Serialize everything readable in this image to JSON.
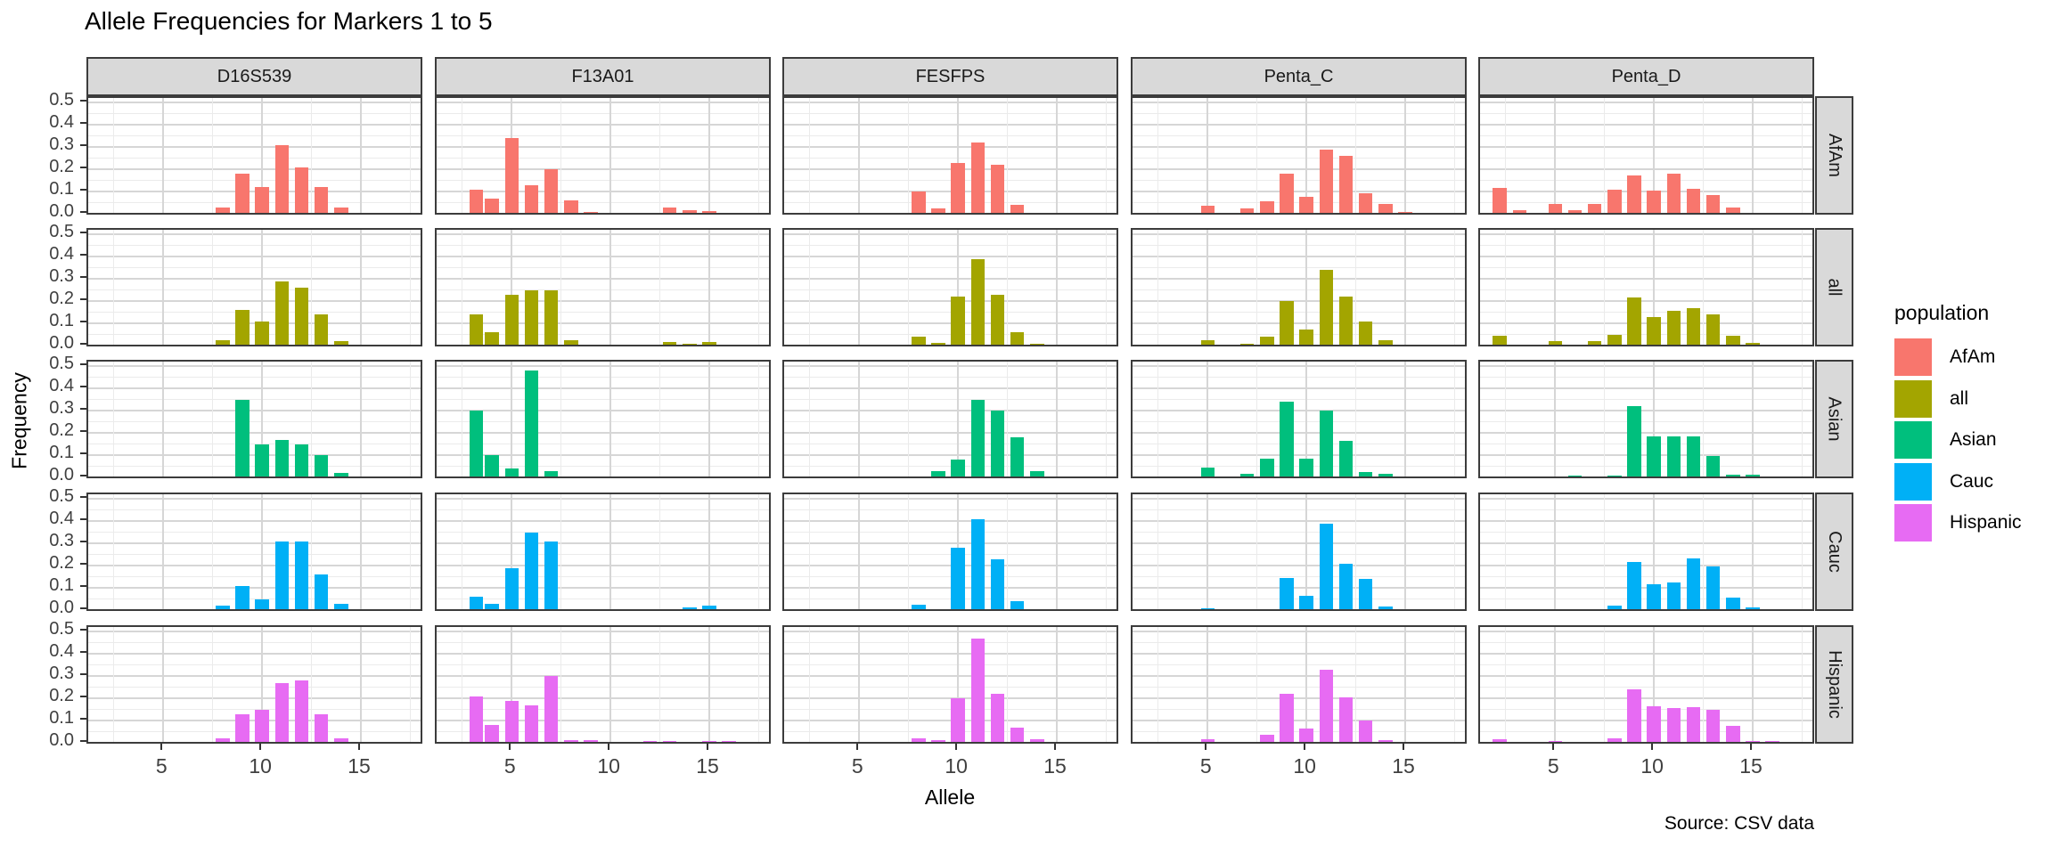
{
  "chart_data": {
    "type": "bar",
    "title": "Allele Frequencies for Markers 1 to 5",
    "xlabel": "Allele",
    "ylabel": "Frequency",
    "caption": "Source: CSV data",
    "legend": {
      "title": "population",
      "entries": [
        "AfAm",
        "all",
        "Asian",
        "Cauc",
        "Hispanic"
      ]
    },
    "facet_columns": [
      "D16S539",
      "F13A01",
      "FESFPS",
      "Penta_C",
      "Penta_D"
    ],
    "facet_rows": [
      "AfAm",
      "all",
      "Asian",
      "Cauc",
      "Hispanic"
    ],
    "colors": {
      "AfAm": "#F8766D",
      "all": "#A3A500",
      "Asian": "#00BF7D",
      "Cauc": "#00B0F6",
      "Hispanic": "#E76BF3"
    },
    "x_tick_labels": [
      "5",
      "10",
      "15"
    ],
    "x_tick_values": [
      5,
      10,
      15
    ],
    "x_minor_values": [
      2.5,
      7.5,
      12.5,
      17.5
    ],
    "y_tick_labels": [
      "0.0",
      "0.1",
      "0.2",
      "0.3",
      "0.4",
      "0.5"
    ],
    "y_tick_values": [
      0.0,
      0.1,
      0.2,
      0.3,
      0.4,
      0.5
    ],
    "y_minor_values": [
      0.05,
      0.15,
      0.25,
      0.35,
      0.45
    ],
    "x_domain": [
      1.2,
      18.2
    ],
    "y_domain": [
      -0.01,
      0.52
    ],
    "bar_width_units": 0.7,
    "grid": true,
    "legend_position": "right",
    "panels": [
      {
        "marker": "D16S539",
        "population": "AfAm",
        "bars": [
          [
            5,
            0.005
          ],
          [
            8,
            0.03
          ],
          [
            9,
            0.18
          ],
          [
            10,
            0.12
          ],
          [
            11,
            0.31
          ],
          [
            12,
            0.21
          ],
          [
            13,
            0.12
          ],
          [
            14,
            0.03
          ]
        ]
      },
      {
        "marker": "F13A01",
        "population": "AfAm",
        "bars": [
          [
            3.2,
            0.11
          ],
          [
            4,
            0.07
          ],
          [
            4.5,
            0.005
          ],
          [
            5,
            0.34
          ],
          [
            6,
            0.13
          ],
          [
            7,
            0.2
          ],
          [
            8,
            0.06
          ],
          [
            9,
            0.01
          ],
          [
            10,
            0.006
          ],
          [
            11,
            0.006
          ],
          [
            12,
            0.003
          ],
          [
            13,
            0.03
          ],
          [
            14,
            0.017
          ],
          [
            15,
            0.015
          ]
        ]
      },
      {
        "marker": "FESFPS",
        "population": "AfAm",
        "bars": [
          [
            6,
            0.004
          ],
          [
            7,
            0.004
          ],
          [
            8,
            0.1
          ],
          [
            9,
            0.025
          ],
          [
            10,
            0.23
          ],
          [
            11,
            0.32
          ],
          [
            12,
            0.22
          ],
          [
            13,
            0.04
          ]
        ]
      },
      {
        "marker": "Penta_C",
        "population": "AfAm",
        "bars": [
          [
            5,
            0.037
          ],
          [
            7,
            0.024
          ],
          [
            8,
            0.057
          ],
          [
            9,
            0.18
          ],
          [
            10,
            0.077
          ],
          [
            11,
            0.29
          ],
          [
            12,
            0.26
          ],
          [
            13,
            0.093
          ],
          [
            14,
            0.047
          ],
          [
            15,
            0.011
          ],
          [
            16,
            0.005
          ]
        ]
      },
      {
        "marker": "Penta_D",
        "population": "AfAm",
        "bars": [
          [
            2.2,
            0.116
          ],
          [
            3.2,
            0.016
          ],
          [
            5,
            0.047
          ],
          [
            6,
            0.017
          ],
          [
            7,
            0.047
          ],
          [
            8,
            0.11
          ],
          [
            9,
            0.173
          ],
          [
            10,
            0.107
          ],
          [
            11,
            0.183
          ],
          [
            12,
            0.113
          ],
          [
            13,
            0.087
          ],
          [
            14,
            0.031
          ],
          [
            15,
            0.005
          ],
          [
            17,
            0.004
          ]
        ]
      },
      {
        "marker": "D16S539",
        "population": "all",
        "bars": [
          [
            5,
            0.004
          ],
          [
            8,
            0.027
          ],
          [
            9,
            0.16
          ],
          [
            10,
            0.11
          ],
          [
            11,
            0.29
          ],
          [
            12,
            0.26
          ],
          [
            13,
            0.14
          ],
          [
            14,
            0.02
          ],
          [
            15,
            0.004
          ]
        ]
      },
      {
        "marker": "F13A01",
        "population": "all",
        "bars": [
          [
            3.2,
            0.14
          ],
          [
            4,
            0.06
          ],
          [
            5,
            0.23
          ],
          [
            6,
            0.25
          ],
          [
            7,
            0.25
          ],
          [
            8,
            0.024
          ],
          [
            9,
            0.006
          ],
          [
            10,
            0.004
          ],
          [
            11,
            0.005
          ],
          [
            12,
            0.004
          ],
          [
            13,
            0.017
          ],
          [
            14,
            0.008
          ],
          [
            15,
            0.017
          ],
          [
            16,
            0.004
          ],
          [
            17,
            0.002
          ]
        ]
      },
      {
        "marker": "FESFPS",
        "population": "all",
        "bars": [
          [
            5,
            0.003
          ],
          [
            6,
            0.003
          ],
          [
            7,
            0.004
          ],
          [
            8,
            0.04
          ],
          [
            9,
            0.015
          ],
          [
            10,
            0.22
          ],
          [
            11,
            0.39
          ],
          [
            12,
            0.23
          ],
          [
            13,
            0.06
          ],
          [
            14,
            0.008
          ]
        ]
      },
      {
        "marker": "Penta_C",
        "population": "all",
        "bars": [
          [
            5,
            0.024
          ],
          [
            7,
            0.01
          ],
          [
            8,
            0.04
          ],
          [
            9,
            0.2
          ],
          [
            10,
            0.073
          ],
          [
            11,
            0.34
          ],
          [
            12,
            0.22
          ],
          [
            13,
            0.11
          ],
          [
            14,
            0.027
          ],
          [
            15,
            0.005
          ],
          [
            16,
            0.003
          ]
        ]
      },
      {
        "marker": "Penta_D",
        "population": "all",
        "bars": [
          [
            2.2,
            0.045
          ],
          [
            3.2,
            0.005
          ],
          [
            5,
            0.023
          ],
          [
            6,
            0.007
          ],
          [
            7,
            0.023
          ],
          [
            8,
            0.05
          ],
          [
            9,
            0.216
          ],
          [
            10,
            0.13
          ],
          [
            11,
            0.156
          ],
          [
            12,
            0.17
          ],
          [
            13,
            0.143
          ],
          [
            14,
            0.045
          ],
          [
            15,
            0.013
          ],
          [
            16,
            0.004
          ],
          [
            17,
            0.005
          ]
        ]
      },
      {
        "marker": "D16S539",
        "population": "Asian",
        "bars": [
          [
            9,
            0.35
          ],
          [
            10,
            0.15
          ],
          [
            11,
            0.17
          ],
          [
            12,
            0.15
          ],
          [
            13,
            0.1
          ],
          [
            14,
            0.02
          ]
        ]
      },
      {
        "marker": "F13A01",
        "population": "Asian",
        "bars": [
          [
            3.2,
            0.3
          ],
          [
            4,
            0.1
          ],
          [
            5,
            0.04
          ],
          [
            6,
            0.48
          ],
          [
            7,
            0.03
          ]
        ]
      },
      {
        "marker": "FESFPS",
        "population": "Asian",
        "bars": [
          [
            9,
            0.03
          ],
          [
            10,
            0.08
          ],
          [
            11,
            0.35
          ],
          [
            12,
            0.3
          ],
          [
            13,
            0.18
          ],
          [
            14,
            0.03
          ]
        ]
      },
      {
        "marker": "Penta_C",
        "population": "Asian",
        "bars": [
          [
            5,
            0.046
          ],
          [
            7,
            0.019
          ],
          [
            8,
            0.084
          ],
          [
            9,
            0.34
          ],
          [
            10,
            0.084
          ],
          [
            11,
            0.3
          ],
          [
            12,
            0.165
          ],
          [
            13,
            0.027
          ],
          [
            14,
            0.019
          ]
        ]
      },
      {
        "marker": "Penta_D",
        "population": "Asian",
        "bars": [
          [
            6,
            0.01
          ],
          [
            8,
            0.008
          ],
          [
            9,
            0.32
          ],
          [
            10,
            0.187
          ],
          [
            11,
            0.187
          ],
          [
            12,
            0.187
          ],
          [
            13,
            0.099
          ],
          [
            14,
            0.015
          ],
          [
            15,
            0.015
          ]
        ]
      },
      {
        "marker": "D16S539",
        "population": "Cauc",
        "bars": [
          [
            8,
            0.02
          ],
          [
            9,
            0.11
          ],
          [
            10,
            0.05
          ],
          [
            11,
            0.31
          ],
          [
            12,
            0.31
          ],
          [
            13,
            0.16
          ],
          [
            14,
            0.03
          ]
        ]
      },
      {
        "marker": "F13A01",
        "population": "Cauc",
        "bars": [
          [
            3.2,
            0.06
          ],
          [
            4,
            0.03
          ],
          [
            5,
            0.19
          ],
          [
            6,
            0.35
          ],
          [
            7,
            0.31
          ],
          [
            8,
            0.006
          ],
          [
            10,
            0.003
          ],
          [
            12,
            0.003
          ],
          [
            13,
            0.004
          ],
          [
            14,
            0.013
          ],
          [
            15,
            0.023
          ],
          [
            16,
            0.007
          ]
        ]
      },
      {
        "marker": "FESFPS",
        "population": "Cauc",
        "bars": [
          [
            5,
            0.004
          ],
          [
            8,
            0.025
          ],
          [
            10,
            0.28
          ],
          [
            11,
            0.41
          ],
          [
            12,
            0.23
          ],
          [
            13,
            0.043
          ],
          [
            14,
            0.005
          ]
        ]
      },
      {
        "marker": "Penta_C",
        "population": "Cauc",
        "bars": [
          [
            5,
            0.01
          ],
          [
            7,
            0.004
          ],
          [
            8,
            0.005
          ],
          [
            9,
            0.147
          ],
          [
            10,
            0.067
          ],
          [
            11,
            0.39
          ],
          [
            12,
            0.21
          ],
          [
            13,
            0.143
          ],
          [
            14,
            0.016
          ],
          [
            15,
            0.004
          ]
        ]
      },
      {
        "marker": "Penta_D",
        "population": "Cauc",
        "bars": [
          [
            2.2,
            0.007
          ],
          [
            6,
            0.004
          ],
          [
            7,
            0.004
          ],
          [
            8,
            0.023
          ],
          [
            9,
            0.219
          ],
          [
            10,
            0.116
          ],
          [
            11,
            0.127
          ],
          [
            12,
            0.232
          ],
          [
            13,
            0.199
          ],
          [
            14,
            0.059
          ],
          [
            15,
            0.013
          ],
          [
            16,
            0.005
          ],
          [
            17,
            0.004
          ]
        ]
      },
      {
        "marker": "D16S539",
        "population": "Hispanic",
        "bars": [
          [
            8,
            0.02
          ],
          [
            9,
            0.13
          ],
          [
            10,
            0.15
          ],
          [
            11,
            0.27
          ],
          [
            12,
            0.28
          ],
          [
            13,
            0.13
          ],
          [
            14,
            0.02
          ],
          [
            15,
            0.005
          ]
        ]
      },
      {
        "marker": "F13A01",
        "population": "Hispanic",
        "bars": [
          [
            3.2,
            0.21
          ],
          [
            4,
            0.08
          ],
          [
            5,
            0.19
          ],
          [
            6,
            0.17
          ],
          [
            7,
            0.3
          ],
          [
            8,
            0.012
          ],
          [
            9,
            0.012
          ],
          [
            12,
            0.01
          ],
          [
            13,
            0.01
          ],
          [
            15,
            0.01
          ],
          [
            16,
            0.008
          ],
          [
            17,
            0.005
          ]
        ]
      },
      {
        "marker": "FESFPS",
        "population": "Hispanic",
        "bars": [
          [
            7,
            0.005
          ],
          [
            8,
            0.02
          ],
          [
            9,
            0.015
          ],
          [
            10,
            0.2
          ],
          [
            11,
            0.47
          ],
          [
            12,
            0.22
          ],
          [
            13,
            0.07
          ],
          [
            14,
            0.017
          ]
        ]
      },
      {
        "marker": "Penta_C",
        "population": "Hispanic",
        "bars": [
          [
            5,
            0.017
          ],
          [
            7,
            0.007
          ],
          [
            8,
            0.037
          ],
          [
            9,
            0.22
          ],
          [
            10,
            0.067
          ],
          [
            11,
            0.33
          ],
          [
            12,
            0.207
          ],
          [
            13,
            0.1
          ],
          [
            14,
            0.013
          ]
        ]
      },
      {
        "marker": "Penta_D",
        "population": "Hispanic",
        "bars": [
          [
            2.2,
            0.019
          ],
          [
            3.2,
            0.005
          ],
          [
            5,
            0.008
          ],
          [
            6,
            0.004
          ],
          [
            7,
            0.004
          ],
          [
            8,
            0.021
          ],
          [
            9,
            0.243
          ],
          [
            10,
            0.165
          ],
          [
            11,
            0.159
          ],
          [
            12,
            0.163
          ],
          [
            13,
            0.15
          ],
          [
            14,
            0.076
          ],
          [
            15,
            0.01
          ],
          [
            16,
            0.008
          ],
          [
            17,
            0.005
          ]
        ]
      }
    ]
  }
}
